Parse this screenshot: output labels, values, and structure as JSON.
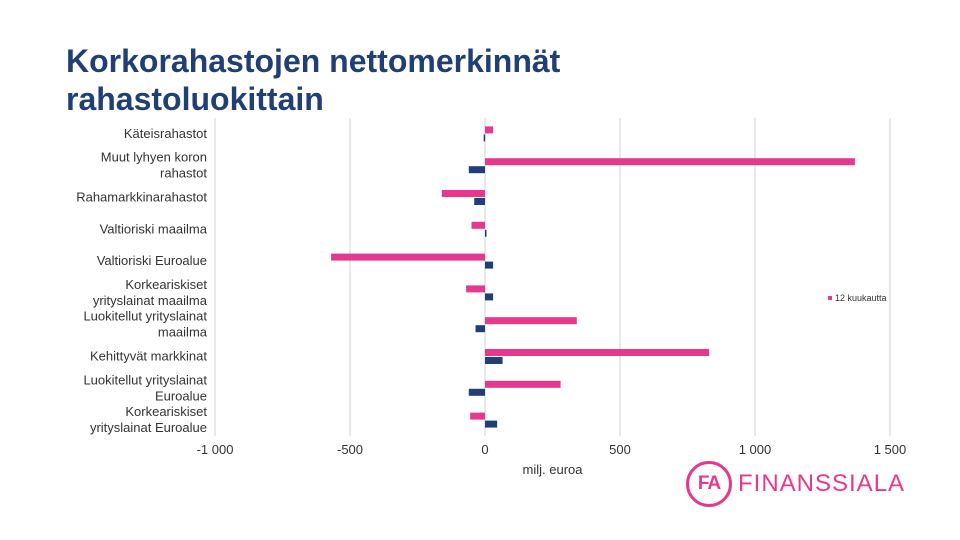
{
  "title": {
    "line1": "Korkorahastojen nettomerkinnät",
    "line2": "rahastoluokittain"
  },
  "logo": {
    "mark": "FA",
    "word": "FINANSSIALA"
  },
  "chart_data": {
    "type": "bar",
    "orientation": "horizontal",
    "title": "",
    "xlabel": "milj. euroa",
    "ylabel": "",
    "xlim": [
      -1000,
      1500
    ],
    "xticks": [
      -1000,
      -500,
      0,
      500,
      1000,
      1500
    ],
    "xtick_labels": [
      "-1 000",
      "-500",
      "0",
      "500",
      "1 000",
      "1 500"
    ],
    "grid": "vertical",
    "legend_position": "right",
    "category_labels": [
      [
        "Käteisrahastot"
      ],
      [
        "Muut lyhyen koron",
        "rahastot"
      ],
      [
        "Rahamarkkinarahastot"
      ],
      [
        "Valtioriski maailma"
      ],
      [
        "Valtioriski Euroalue"
      ],
      [
        "Korkeariskiset",
        "yrityslainat maailma"
      ],
      [
        "Luokitellut yrityslainat",
        "maailma"
      ],
      [
        "Kehittyvät markkinat"
      ],
      [
        "Luokitellut yrityslainat",
        "Euroalue"
      ],
      [
        "Korkeariskiset",
        "yrityslainat Euroalue"
      ]
    ],
    "series": [
      {
        "name": "12 kuukautta",
        "color": "#e6398e",
        "values": [
          30,
          1370,
          -160,
          -50,
          -570,
          -70,
          340,
          830,
          280,
          -55
        ]
      },
      {
        "name": "",
        "color": "#1f3f75",
        "values": [
          -5,
          -60,
          -40,
          0,
          30,
          30,
          -35,
          65,
          -60,
          45
        ]
      }
    ]
  }
}
